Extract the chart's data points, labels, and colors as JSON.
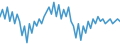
{
  "values": [
    2,
    5,
    1,
    6,
    0,
    4,
    -1,
    3,
    0,
    -6,
    -2,
    -9,
    -1,
    -5,
    0,
    -2,
    1,
    -1,
    2,
    4,
    6,
    3,
    8,
    2,
    7,
    1,
    5,
    2,
    6,
    0,
    -2,
    -7,
    -1,
    -8,
    -2,
    -5,
    0,
    -3,
    1,
    -1,
    2,
    0,
    1,
    -1,
    0,
    1,
    -1,
    0,
    1,
    0
  ],
  "line_color": "#4499cc",
  "linewidth": 1.1,
  "background_color": "#ffffff"
}
